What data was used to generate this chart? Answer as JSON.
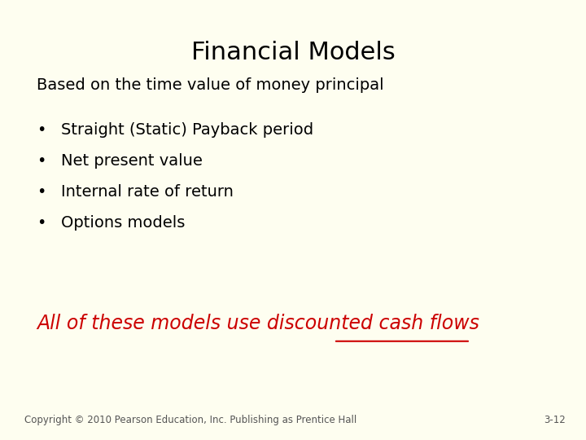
{
  "background_color": "#FEFEF0",
  "title": "Financial Models",
  "title_fontsize": 22,
  "title_color": "#000000",
  "title_bold": false,
  "subtitle": "Based on the time value of money principal",
  "subtitle_fontsize": 14,
  "subtitle_color": "#000000",
  "bullet_items": [
    "Straight (Static) Payback period",
    "Net present value",
    "Internal rate of return",
    "Options models"
  ],
  "bullet_fontsize": 14,
  "bullet_color": "#000000",
  "italic_line_prefix": "All of these models use ",
  "italic_line_underline": "discounted",
  "italic_line_suffix": " cash flows",
  "italic_line_fontsize": 17,
  "italic_line_color": "#CC0000",
  "footer_left": "Copyright © 2010 Pearson Education, Inc. Publishing as Prentice Hall",
  "footer_right": "3-12",
  "footer_fontsize": 8.5,
  "footer_color": "#555555"
}
